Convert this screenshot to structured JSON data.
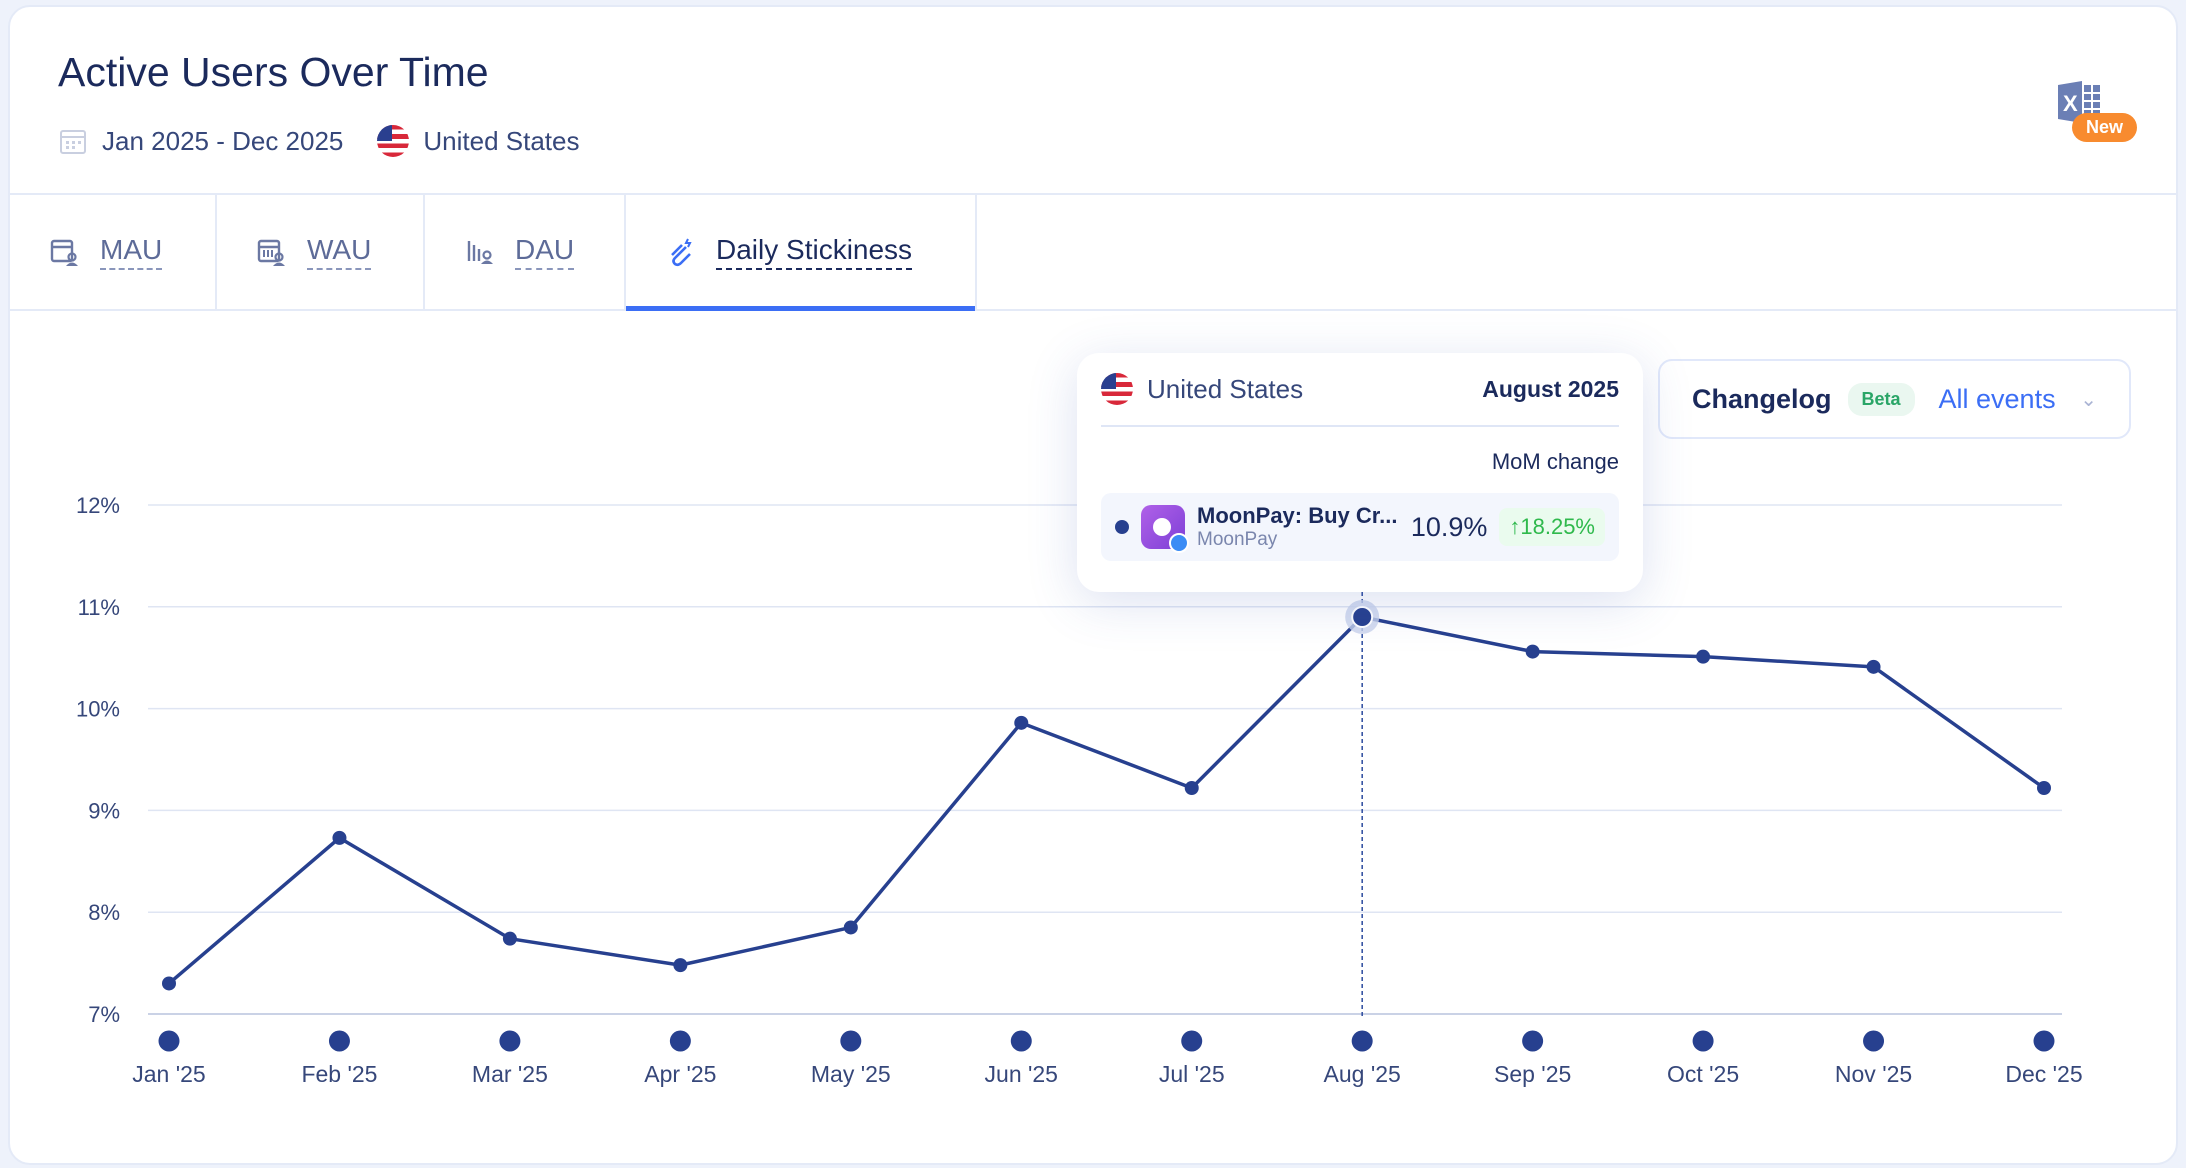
{
  "header": {
    "title": "Active Users Over Time",
    "date_range": "Jan 2025 - Dec 2025",
    "country": "United States",
    "export_badge": "New"
  },
  "tabs": [
    {
      "label": "MAU"
    },
    {
      "label": "WAU"
    },
    {
      "label": "DAU"
    },
    {
      "label": "Daily Stickiness",
      "active": true
    }
  ],
  "tooltip": {
    "country": "United States",
    "date": "August 2025",
    "column": "MoM change",
    "app_name": "MoonPay: Buy Cr...",
    "app_developer": "MoonPay",
    "value": "10.9%",
    "change": "↑18.25%"
  },
  "changelog": {
    "label": "Changelog",
    "badge": "Beta",
    "filter": "All events"
  },
  "colors": {
    "line": "#27408f",
    "accent": "#3b6ef5"
  },
  "chart_data": {
    "type": "line",
    "title": "Daily Stickiness",
    "xlabel": "",
    "ylabel": "",
    "categories": [
      "Jan '25",
      "Feb '25",
      "Mar '25",
      "Apr '25",
      "May '25",
      "Jun '25",
      "Jul '25",
      "Aug '25",
      "Sep '25",
      "Oct '25",
      "Nov '25",
      "Dec '25"
    ],
    "series": [
      {
        "name": "MoonPay: Buy Cr...",
        "values": [
          7.3,
          8.73,
          7.74,
          7.48,
          7.85,
          9.86,
          9.22,
          10.9,
          10.56,
          10.51,
          10.41,
          9.22
        ]
      }
    ],
    "ylim": [
      7,
      12
    ],
    "yticks": [
      "7%",
      "8%",
      "9%",
      "10%",
      "11%",
      "12%"
    ],
    "grid": true,
    "highlight_index": 7
  }
}
